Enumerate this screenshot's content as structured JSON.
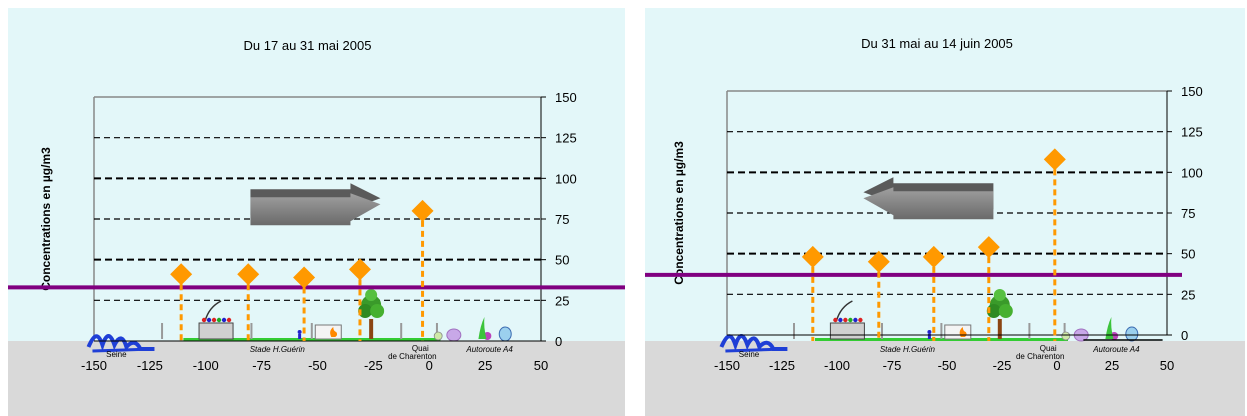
{
  "chart_data": [
    {
      "type": "scatter",
      "title": "Du 17 au 31 mai 2005",
      "ylabel": "Concentrations en µg/m3",
      "xlabel": "",
      "xlim": [
        -150,
        50
      ],
      "ylim": [
        0,
        150
      ],
      "xticks": [
        -150,
        -125,
        -100,
        -75,
        -50,
        -25,
        0,
        25,
        50
      ],
      "yticks": [
        0,
        25,
        50,
        75,
        100,
        125,
        150
      ],
      "grid": "horizontal-dashed",
      "reference_line": {
        "y": 33,
        "color": "#800080"
      },
      "wind_direction": "right",
      "x": [
        -111,
        -81,
        -56,
        -31,
        -3
      ],
      "y": [
        41,
        41,
        39,
        44,
        80
      ],
      "marker_color": "#FF9900",
      "landmarks": [
        {
          "label": "Seine"
        },
        {
          "label": "Stade H.Guérin"
        },
        {
          "label": "Quai de Charenton"
        },
        {
          "label": "Autoroute A4"
        }
      ]
    },
    {
      "type": "scatter",
      "title": "Du 31 mai au 14 juin 2005",
      "ylabel": "Concentrations en µg/m3",
      "xlabel": "",
      "xlim": [
        -150,
        50
      ],
      "ylim": [
        0,
        150
      ],
      "xticks": [
        -150,
        -125,
        -100,
        -75,
        -50,
        -25,
        0,
        25,
        50
      ],
      "yticks": [
        0,
        25,
        50,
        75,
        100,
        125,
        150
      ],
      "grid": "horizontal-dashed",
      "reference_line": {
        "y": 37,
        "color": "#800080"
      },
      "wind_direction": "left",
      "x": [
        -111,
        -81,
        -56,
        -31,
        -1
      ],
      "y": [
        48,
        45,
        48,
        54,
        108
      ],
      "marker_color": "#FF9900",
      "landmarks": [
        {
          "label": "Seine"
        },
        {
          "label": "Stade H.Guérin"
        },
        {
          "label": "Quai de Charenton"
        },
        {
          "label": "Autoroute A4"
        }
      ]
    }
  ]
}
